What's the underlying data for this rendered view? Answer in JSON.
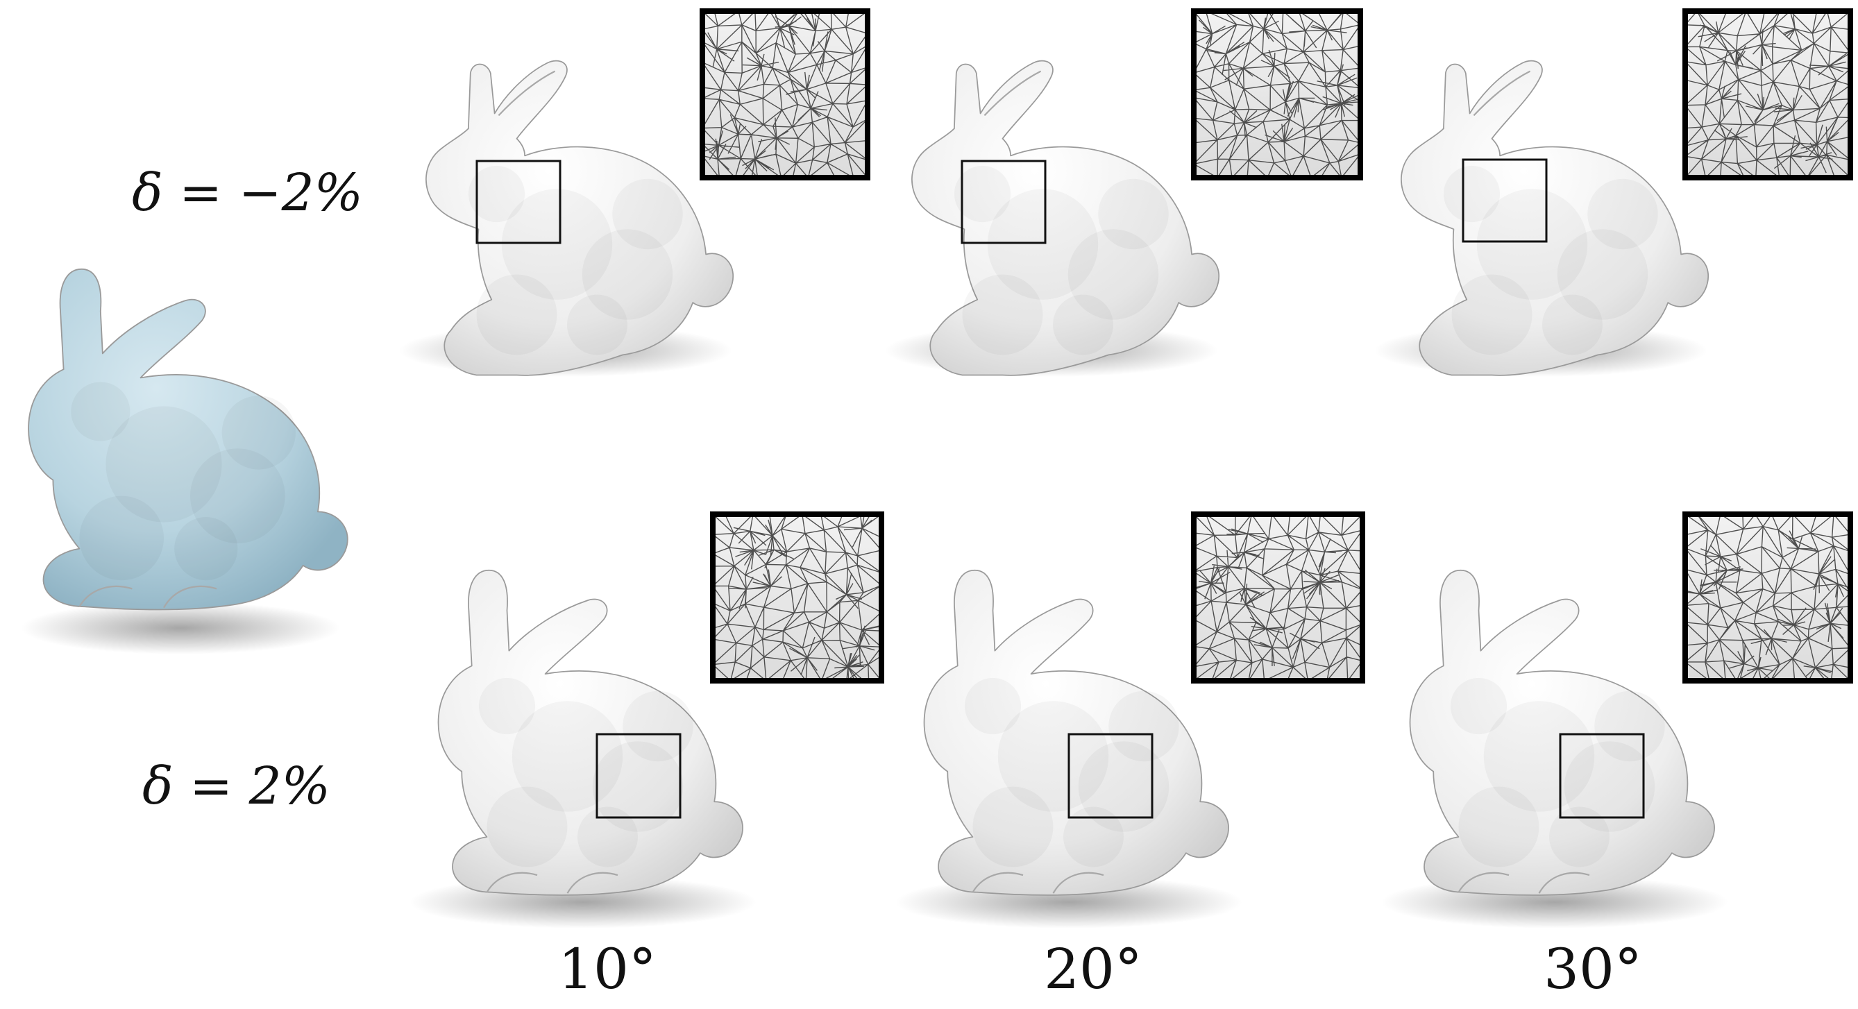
{
  "row_labels": {
    "top": "δ = −2%",
    "bottom": "δ = 2%"
  },
  "column_labels": [
    "10°",
    "20°",
    "30°"
  ],
  "colors": {
    "reference_mesh": "#b8d4e0",
    "result_mesh": "#f0f0f0",
    "inset_border": "#000000",
    "wireframe": "#333333"
  },
  "icons": {
    "reference": "bunny-reference-icon",
    "result": "bunny-remeshed-icon",
    "inset": "wireframe-zoom-icon"
  }
}
